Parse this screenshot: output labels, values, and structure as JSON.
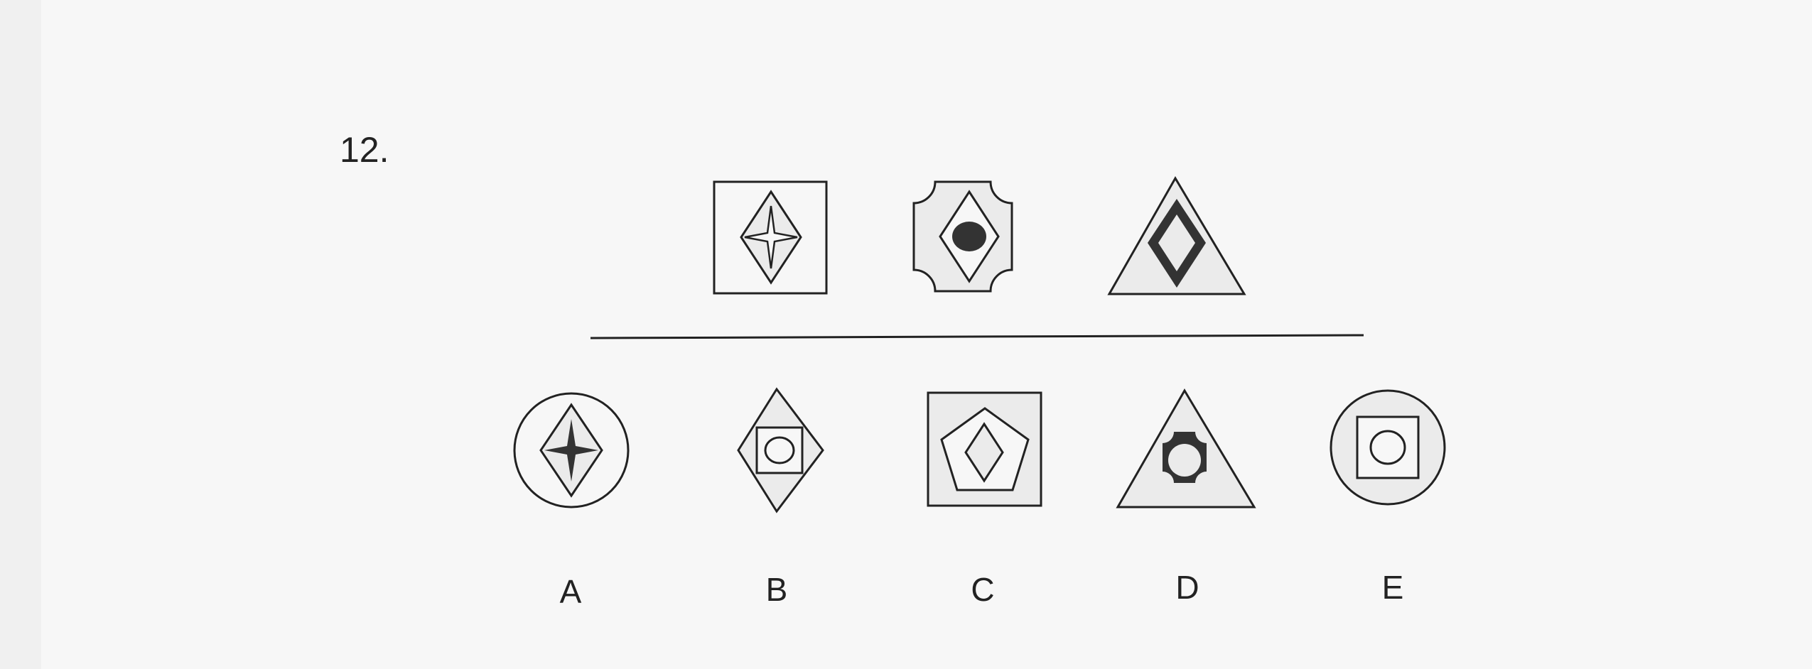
{
  "question": {
    "number": "12."
  },
  "options": {
    "a": "A",
    "b": "B",
    "c": "C",
    "d": "D",
    "e": "E"
  },
  "colors": {
    "background": "#f7f7f7",
    "stroke": "#222222",
    "shape_fill_light": "#ebebeb",
    "shape_fill_dark": "#333333"
  }
}
